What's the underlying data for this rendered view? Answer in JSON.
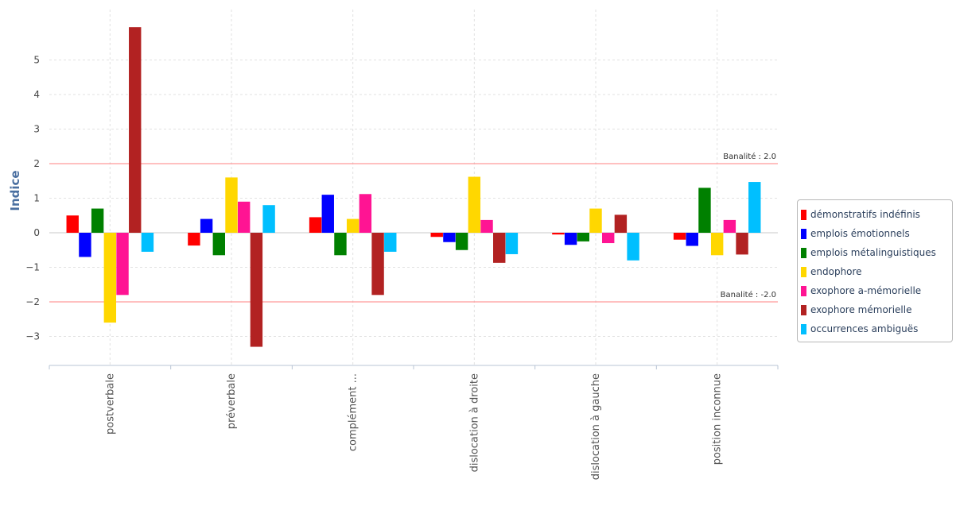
{
  "chart_data": {
    "type": "bar",
    "title": "",
    "xlabel": "",
    "ylabel": "Indice",
    "ylim": [
      -3.8,
      6.4
    ],
    "yticks": [
      -3,
      -2,
      -1,
      0,
      1,
      2,
      3,
      4,
      5
    ],
    "grid": true,
    "legend_position": "right",
    "categories": [
      "postverbale",
      "préverbale",
      "complément ...",
      "dislocation à droite",
      "dislocation à gauche",
      "position inconnue"
    ],
    "series": [
      {
        "name": "démonstratifs indéfinis",
        "color": "#ff0000",
        "values": [
          0.5,
          -0.37,
          0.45,
          -0.12,
          -0.05,
          -0.2
        ]
      },
      {
        "name": "emplois émotionnels",
        "color": "#0000ff",
        "values": [
          -0.7,
          0.4,
          1.1,
          -0.27,
          -0.35,
          -0.38
        ]
      },
      {
        "name": "emplois métalinguistiques",
        "color": "#008000",
        "values": [
          0.7,
          -0.65,
          -0.65,
          -0.5,
          -0.25,
          1.3
        ]
      },
      {
        "name": "endophore",
        "color": "#ffd700",
        "values": [
          -2.6,
          1.6,
          0.4,
          1.62,
          0.7,
          -0.65
        ]
      },
      {
        "name": "exophore a-mémorielle",
        "color": "#ff1493",
        "values": [
          -1.8,
          0.9,
          1.12,
          0.37,
          -0.3,
          0.37
        ]
      },
      {
        "name": "exophore mémorielle",
        "color": "#b22222",
        "values": [
          5.95,
          -3.3,
          -1.8,
          -0.87,
          0.52,
          -0.63
        ]
      },
      {
        "name": "occurrences ambiguës",
        "color": "#00bfff",
        "values": [
          -0.55,
          0.8,
          -0.55,
          -0.62,
          -0.8,
          1.47
        ]
      }
    ],
    "thresholds": [
      {
        "value": 2.0,
        "label": "Banalité : 2.0",
        "color": "#ff8080"
      },
      {
        "value": -2.0,
        "label": "Banalité : -2.0",
        "color": "#ff8080"
      }
    ]
  }
}
